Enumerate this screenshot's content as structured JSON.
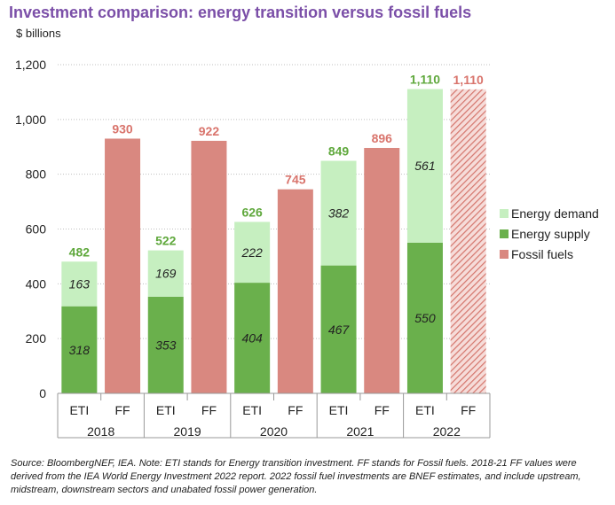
{
  "chart_data": {
    "type": "bar",
    "stacked": true,
    "title": "Investment comparison: energy transition versus fossil fuels",
    "ylabel": "$ billions",
    "ylim": [
      0,
      1200
    ],
    "yticks": [
      "0",
      "200",
      "400",
      "600",
      "800",
      "1,000",
      "1,200"
    ],
    "ytick_values": [
      0,
      200,
      400,
      600,
      800,
      1000,
      1200
    ],
    "years": [
      "2018",
      "2019",
      "2020",
      "2021",
      "2022"
    ],
    "categories": [
      "ETI",
      "FF",
      "ETI",
      "FF",
      "ETI",
      "FF",
      "ETI",
      "FF",
      "ETI",
      "FF"
    ],
    "series": [
      {
        "name": "Energy supply",
        "color": "#6ab04c",
        "values": [
          318,
          null,
          353,
          null,
          404,
          null,
          467,
          null,
          550,
          null
        ]
      },
      {
        "name": "Energy demand",
        "color": "#c6efc0",
        "values": [
          163,
          null,
          169,
          null,
          222,
          null,
          382,
          null,
          561,
          null
        ]
      },
      {
        "name": "Fossil fuels",
        "color": "#d98880",
        "values": [
          null,
          930,
          null,
          922,
          null,
          745,
          null,
          896,
          null,
          1110
        ]
      }
    ],
    "segment_labels": {
      "supply": [
        "318",
        "353",
        "404",
        "467",
        "550"
      ],
      "demand": [
        "163",
        "169",
        "222",
        "382",
        "561"
      ]
    },
    "totals_eti": [
      "482",
      "522",
      "626",
      "849",
      "1,110"
    ],
    "totals_ff": [
      "930",
      "922",
      "745",
      "896",
      "1,110"
    ],
    "legend": [
      "Energy demand",
      "Energy supply",
      "Fossil fuels"
    ],
    "legend_position": "right",
    "grid": true,
    "hatched_last_ff": true
  },
  "colors": {
    "title": "#7b4fa8",
    "eti_label": "#5fa83c",
    "ff_label": "#d9746c",
    "demand": "#c6efc0",
    "supply": "#6ab04c",
    "fossil": "#d98880",
    "grid": "#bfbfbf"
  },
  "source_note": "Source: BloombergNEF, IEA. Note: ETI stands for Energy transition investment. FF stands for Fossil fuels. 2018-21 FF values were derived from the IEA World Energy Investment 2022 report. 2022 fossil fuel investments are BNEF estimates, and include upstream, midstream, downstream sectors and unabated fossil power generation."
}
